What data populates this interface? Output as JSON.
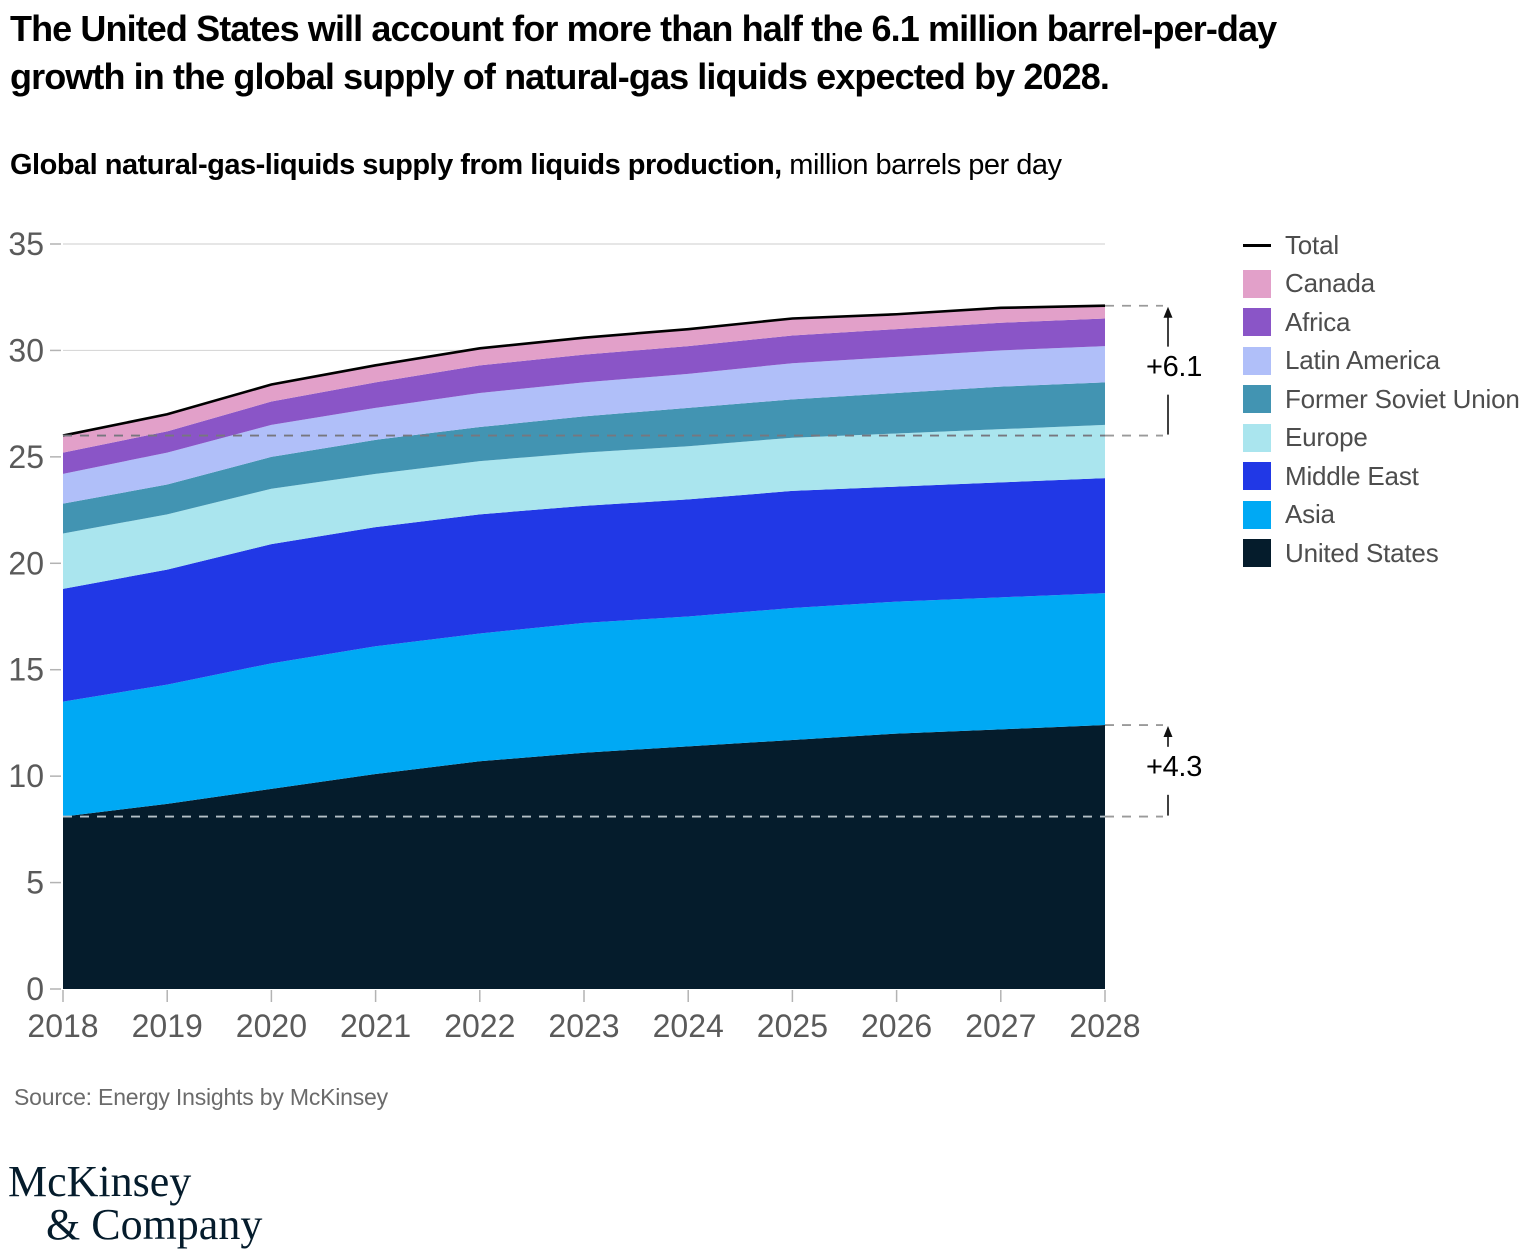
{
  "title": {
    "line1": "The United States will account for more than half the 6.1 million barrel-per-day",
    "line2": "growth in the global supply of natural-gas liquids expected by 2028."
  },
  "subtitle": {
    "bold": "Global natural-gas-liquids supply from liquids production,",
    "regular": " million barrels per day"
  },
  "chart_data": {
    "type": "area",
    "stacked": true,
    "title": "Global natural-gas-liquids supply from liquids production",
    "unit": "million barrels per day",
    "x": [
      2018,
      2019,
      2020,
      2021,
      2022,
      2023,
      2024,
      2025,
      2026,
      2027,
      2028
    ],
    "ylim": [
      0,
      35
    ],
    "yticks": [
      0,
      5,
      10,
      15,
      20,
      25,
      30,
      35
    ],
    "grid": "horizontal",
    "legend_position": "right",
    "total_label": "Total",
    "total_color": "#000000",
    "series": [
      {
        "name": "Canada",
        "color": "#E2A0C9",
        "values": [
          0.8,
          0.8,
          0.8,
          0.8,
          0.8,
          0.8,
          0.8,
          0.8,
          0.7,
          0.7,
          0.6
        ]
      },
      {
        "name": "Africa",
        "color": "#8A55C7",
        "values": [
          1.0,
          1.0,
          1.1,
          1.2,
          1.3,
          1.3,
          1.3,
          1.3,
          1.3,
          1.3,
          1.3
        ]
      },
      {
        "name": "Latin America",
        "color": "#B0BFF9",
        "values": [
          1.4,
          1.5,
          1.5,
          1.5,
          1.6,
          1.6,
          1.6,
          1.7,
          1.7,
          1.7,
          1.7
        ]
      },
      {
        "name": "Former Soviet Union",
        "color": "#4294B2",
        "values": [
          1.4,
          1.4,
          1.5,
          1.6,
          1.6,
          1.7,
          1.8,
          1.8,
          1.9,
          2.0,
          2.0
        ]
      },
      {
        "name": "Europe",
        "color": "#AAE5EE",
        "values": [
          2.6,
          2.6,
          2.6,
          2.5,
          2.5,
          2.5,
          2.5,
          2.5,
          2.5,
          2.5,
          2.5
        ]
      },
      {
        "name": "Middle East",
        "color": "#2138E6",
        "values": [
          5.3,
          5.4,
          5.6,
          5.6,
          5.6,
          5.5,
          5.5,
          5.5,
          5.4,
          5.4,
          5.4
        ]
      },
      {
        "name": "Asia",
        "color": "#00A9F4",
        "values": [
          5.4,
          5.6,
          5.9,
          6.0,
          6.0,
          6.1,
          6.1,
          6.2,
          6.2,
          6.2,
          6.2
        ]
      },
      {
        "name": "United States",
        "color": "#051C2C",
        "values": [
          8.1,
          8.7,
          9.4,
          10.1,
          10.7,
          11.1,
          11.4,
          11.7,
          12.0,
          12.2,
          12.4
        ]
      }
    ],
    "totals": [
      26.0,
      27.0,
      28.4,
      29.3,
      30.1,
      30.6,
      31.0,
      31.5,
      31.7,
      32.0,
      32.1
    ],
    "annotations": [
      {
        "label": "+6.1",
        "series": "Total",
        "from_value": 26.0,
        "to_value": 32.1
      },
      {
        "label": "+4.3",
        "series": "United States",
        "from_value": 8.1,
        "to_value": 12.4
      }
    ]
  },
  "source": {
    "text": "Source: Energy Insights by McKinsey"
  },
  "logo": {
    "line1": "McKinsey",
    "line2": "& Company",
    "color": "#051C2C"
  }
}
